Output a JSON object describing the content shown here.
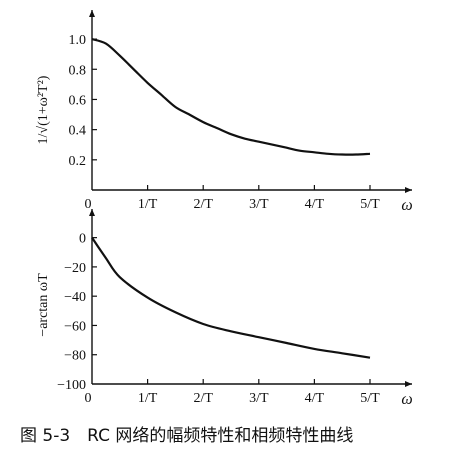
{
  "caption": "图 5-3　RC 网络的幅频特性和相频特性曲线",
  "chart_data": [
    {
      "type": "line",
      "ylabel": "1/√(1+ω²T²)",
      "xlabel": "ω",
      "x_ticks": [
        "0",
        "1/T",
        "2/T",
        "3/T",
        "4/T",
        "5/T"
      ],
      "y_ticks": [
        "1.0",
        "0.8",
        "0.6",
        "0.4",
        "0.2"
      ],
      "xlim": [
        0,
        5.4
      ],
      "ylim": [
        0,
        1.1
      ],
      "grid": false,
      "x": [
        0,
        0.25,
        0.5,
        0.75,
        1,
        1.25,
        1.5,
        1.75,
        2,
        2.25,
        2.5,
        2.75,
        3,
        3.25,
        3.5,
        3.75,
        4,
        4.25,
        4.5,
        4.75,
        5
      ],
      "y": [
        1.0,
        0.97,
        0.89,
        0.8,
        0.71,
        0.63,
        0.55,
        0.5,
        0.45,
        0.41,
        0.37,
        0.34,
        0.32,
        0.3,
        0.28,
        0.26,
        0.25,
        0.24,
        0.235,
        0.235,
        0.24
      ]
    },
    {
      "type": "line",
      "ylabel": "−arctan ωT",
      "xlabel": "ω",
      "x_ticks": [
        "0",
        "1/T",
        "2/T",
        "3/T",
        "4/T",
        "5/T"
      ],
      "y_ticks": [
        "0",
        "−20",
        "−40",
        "−60",
        "−80",
        "−100"
      ],
      "xlim": [
        0,
        5.4
      ],
      "ylim": [
        -100,
        10
      ],
      "grid": false,
      "x": [
        0,
        0.25,
        0.5,
        1,
        1.5,
        2,
        2.5,
        3,
        3.5,
        4,
        4.5,
        5
      ],
      "y": [
        0,
        -14,
        -27,
        -41,
        -51,
        -59,
        -64,
        -68,
        -72,
        -76,
        -79,
        -82
      ]
    }
  ]
}
